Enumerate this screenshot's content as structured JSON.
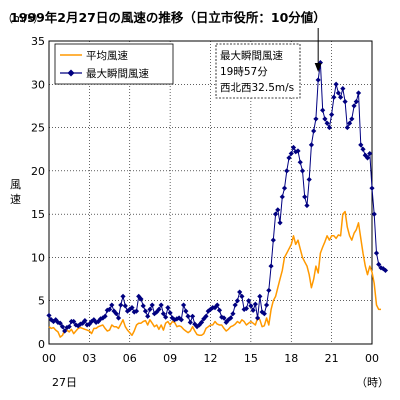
{
  "chart_data": {
    "type": "line",
    "title": "1999年2月27日の風速の推移（日立市役所：10分値）",
    "ylabel": "風速",
    "yunit": "（m/s）",
    "xlabel_unit": "（時）",
    "date_label": "27日",
    "ylim": [
      0,
      35
    ],
    "xlim_hours": [
      0,
      24
    ],
    "y_ticks": [
      "0",
      "5",
      "10",
      "15",
      "20",
      "25",
      "30",
      "35"
    ],
    "x_ticks": [
      "00",
      "03",
      "06",
      "09",
      "12",
      "15",
      "18",
      "21",
      "00"
    ],
    "grid": true,
    "legend_position": "top-left",
    "series": [
      {
        "name": "平均風速",
        "color": "#FF9900",
        "marker": "none",
        "x_hours_step": 0.16667,
        "values": [
          2.0,
          1.8,
          1.9,
          1.6,
          1.4,
          0.8,
          1.0,
          1.6,
          1.6,
          1.4,
          1.7,
          1.2,
          1.5,
          1.8,
          1.9,
          1.8,
          1.7,
          1.6,
          1.5,
          1.2,
          1.8,
          1.8,
          2.0,
          2.1,
          2.2,
          1.8,
          1.5,
          1.6,
          2.2,
          2.0,
          2.0,
          1.8,
          2.3,
          2.8,
          2.0,
          1.6,
          1.3,
          1.0,
          1.5,
          2.2,
          2.4,
          2.4,
          2.6,
          2.7,
          2.2,
          2.8,
          2.4,
          2.0,
          2.2,
          1.7,
          2.2,
          1.6,
          2.4,
          2.6,
          2.2,
          2.6,
          2.5,
          2.0,
          2.1,
          2.0,
          1.7,
          1.5,
          1.3,
          1.5,
          2.0,
          1.5,
          1.1,
          1.0,
          1.0,
          1.2,
          1.8,
          2.0,
          2.2,
          2.2,
          2.6,
          2.3,
          2.2,
          2.2,
          1.8,
          1.5,
          1.7,
          2.0,
          2.1,
          2.3,
          2.6,
          2.4,
          2.8,
          2.6,
          2.2,
          2.4,
          2.6,
          2.4,
          2.2,
          3.0,
          2.8,
          2.0,
          2.1,
          3.0,
          2.2,
          4.0,
          5.0,
          5.5,
          6.5,
          7.5,
          8.5,
          10.0,
          10.5,
          11.0,
          11.5,
          12.5,
          11.5,
          12.0,
          11.0,
          10.0,
          9.5,
          9.0,
          8.0,
          6.5,
          7.5,
          9.0,
          8.2,
          10.5,
          11.2,
          11.8,
          12.5,
          12.0,
          12.5,
          12.5,
          12.2,
          12.6,
          12.5,
          15.0,
          15.3,
          13.5,
          12.5,
          12.0,
          12.8,
          13.2,
          14.0,
          12.2,
          10.5,
          9.0,
          8.0,
          9.0,
          8.3,
          7.0,
          4.5,
          4.0,
          4.0
        ]
      },
      {
        "name": "最大瞬間風速",
        "color": "#000080",
        "marker": "diamond",
        "x_hours_step": 0.16667,
        "values": [
          3.3,
          2.8,
          2.6,
          2.8,
          2.5,
          2.4,
          2.0,
          1.5,
          1.9,
          2.0,
          2.6,
          2.6,
          2.2,
          2.1,
          2.3,
          2.4,
          2.7,
          2.2,
          2.3,
          2.6,
          2.8,
          2.5,
          2.6,
          2.9,
          3.0,
          3.2,
          3.9,
          4.0,
          4.5,
          3.8,
          3.5,
          3.0,
          4.5,
          5.5,
          4.4,
          3.8,
          4.0,
          4.2,
          3.7,
          3.8,
          5.5,
          5.2,
          4.4,
          3.8,
          3.2,
          4.0,
          4.5,
          3.5,
          3.7,
          4.0,
          4.5,
          3.5,
          3.1,
          4.2,
          3.6,
          3.0,
          2.8,
          2.9,
          3.0,
          2.8,
          4.5,
          3.8,
          3.2,
          2.5,
          3.2,
          2.3,
          2.0,
          2.2,
          2.5,
          2.9,
          3.2,
          3.8,
          4.0,
          4.2,
          4.2,
          4.5,
          3.9,
          3.1,
          3.0,
          2.5,
          2.8,
          3.0,
          3.5,
          4.5,
          5.0,
          6.0,
          5.5,
          4.0,
          4.1,
          5.0,
          4.4,
          3.9,
          4.6,
          3.0,
          5.5,
          3.7,
          3.5,
          4.5,
          6.2,
          9.0,
          12.0,
          15.0,
          15.5,
          14.0,
          17.0,
          18.0,
          20.0,
          21.5,
          22.0,
          22.7,
          22.2,
          22.3,
          21.0,
          20.0,
          17.0,
          16.0,
          19.0,
          23.0,
          24.6,
          26.0,
          30.5,
          32.5,
          27.0,
          26.0,
          25.5,
          25.0,
          26.5,
          28.5,
          30.0,
          29.0,
          28.5,
          29.5,
          28.0,
          25.0,
          25.5,
          26.0,
          27.5,
          28.0,
          29.0,
          23.0,
          22.5,
          21.8,
          21.5,
          22.0,
          18.0,
          15.0,
          10.5,
          9.2,
          8.8,
          8.7,
          8.5
        ]
      }
    ],
    "annotation": {
      "lines": [
        "最大瞬間風速",
        "19時57分",
        "西北西32.5m/s"
      ],
      "target_series": 1,
      "target_index": 120
    }
  }
}
